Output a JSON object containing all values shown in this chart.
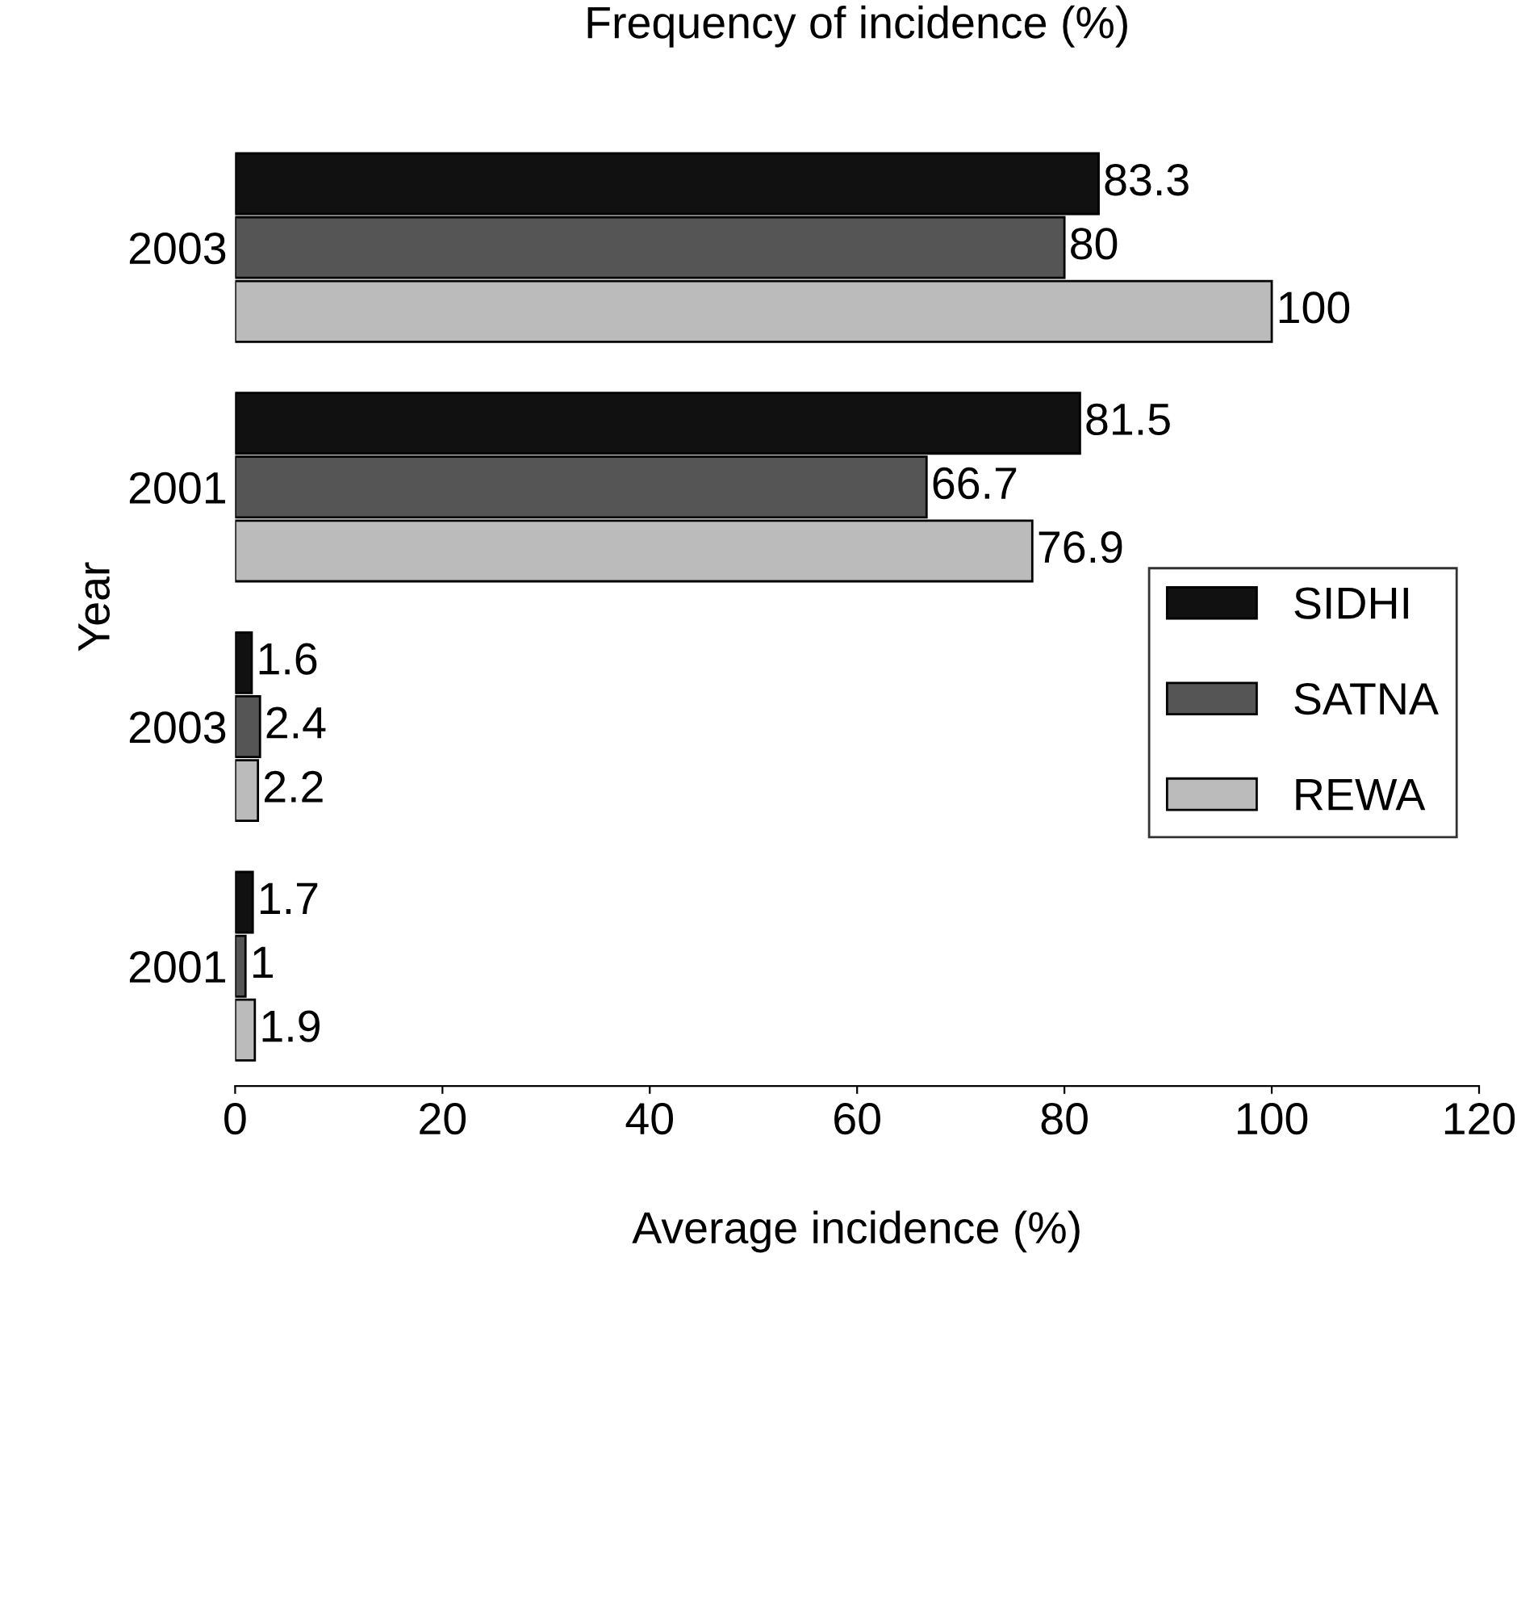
{
  "chart_data": {
    "type": "bar",
    "orientation": "horizontal",
    "title": "Frequency of incidence (%)",
    "xlabel": "Average incidence (%)",
    "ylabel": "Year",
    "categories": [
      "2003",
      "2001",
      "2003",
      "2001"
    ],
    "series": [
      {
        "name": "SIDHI",
        "color": "#111111",
        "values": [
          83.3,
          81.5,
          1.6,
          1.7
        ]
      },
      {
        "name": "SATNA",
        "color": "#555555",
        "values": [
          80,
          66.7,
          2.4,
          1
        ]
      },
      {
        "name": "REWA",
        "color": "#bbbbbb",
        "values": [
          100,
          76.9,
          2.2,
          1.9
        ]
      }
    ],
    "xlim": [
      0,
      120
    ],
    "xticks": [
      0,
      20,
      40,
      60,
      80,
      100,
      120
    ],
    "data_labels": true,
    "legend": "right",
    "grid": false
  }
}
